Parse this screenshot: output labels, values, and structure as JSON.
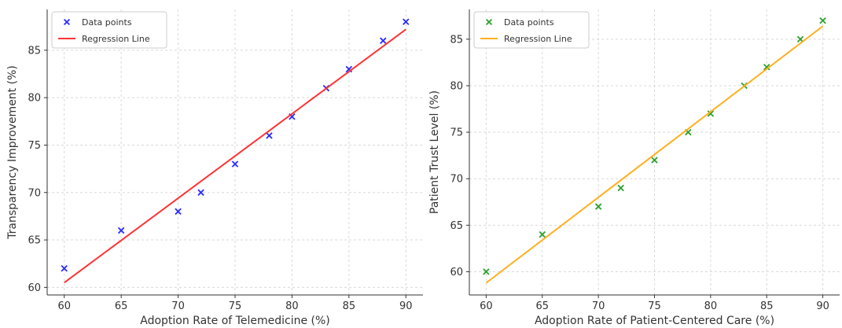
{
  "chart_data": [
    {
      "type": "scatter",
      "title": "",
      "xlabel": "Adoption Rate of Telemedicine (%)",
      "ylabel": "Transparency Improvement (%)",
      "xlim": [
        58.5,
        91.5
      ],
      "ylim": [
        59.2,
        89.3
      ],
      "xticks": [
        60,
        65,
        70,
        75,
        80,
        85,
        90
      ],
      "yticks": [
        60,
        65,
        70,
        75,
        80,
        85
      ],
      "grid": true,
      "legend_position": "top-left",
      "series": [
        {
          "name": "Data points",
          "kind": "scatter",
          "marker": "x",
          "color": "#2a2aff",
          "x": [
            60,
            65,
            70,
            72,
            75,
            78,
            80,
            83,
            85,
            88,
            90
          ],
          "y": [
            62,
            66,
            68,
            70,
            73,
            76,
            78,
            81,
            83,
            86,
            88
          ]
        },
        {
          "name": "Regression Line",
          "kind": "line",
          "color": "#ff3333",
          "x": [
            60,
            90
          ],
          "y": [
            60.5,
            87.2
          ]
        }
      ]
    },
    {
      "type": "scatter",
      "title": "",
      "xlabel": "Adoption Rate of Patient-Centered Care (%)",
      "ylabel": "Patient Trust Level (%)",
      "xlim": [
        58.5,
        91.5
      ],
      "ylim": [
        57.5,
        88.2
      ],
      "xticks": [
        60,
        65,
        70,
        75,
        80,
        85,
        90
      ],
      "yticks": [
        60,
        65,
        70,
        75,
        80,
        85
      ],
      "grid": true,
      "legend_position": "top-left",
      "series": [
        {
          "name": "Data points",
          "kind": "scatter",
          "marker": "x",
          "color": "#2ca02c",
          "x": [
            60,
            65,
            70,
            72,
            75,
            78,
            80,
            83,
            85,
            88,
            90
          ],
          "y": [
            60,
            64,
            67,
            69,
            72,
            75,
            77,
            80,
            82,
            85,
            87
          ]
        },
        {
          "name": "Regression Line",
          "kind": "line",
          "color": "#ffb020",
          "x": [
            60,
            90
          ],
          "y": [
            58.8,
            86.4
          ]
        }
      ]
    }
  ]
}
